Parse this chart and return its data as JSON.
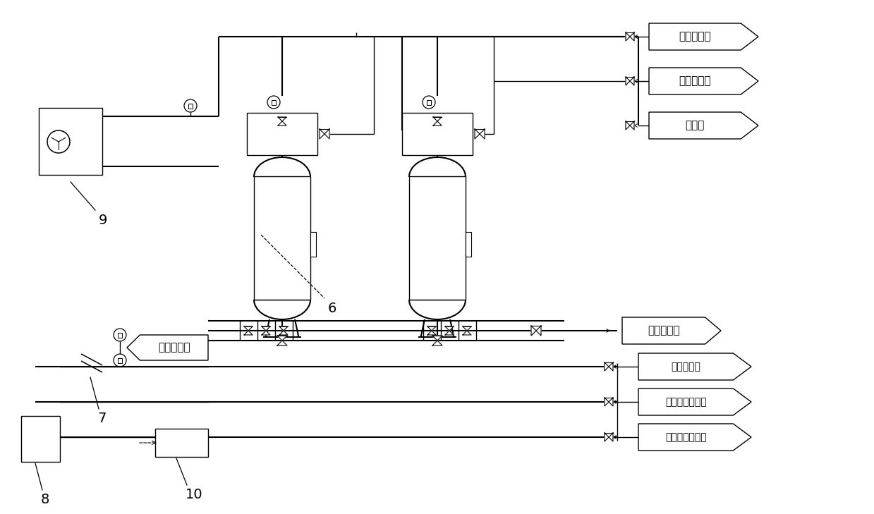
{
  "bg_color": "#ffffff",
  "line_color": "#000000",
  "lw": 1.0,
  "lw2": 1.5,
  "labels": {
    "right_top1": "碱性再生剂",
    "right_top2": "酸性再生剂",
    "right_top3": "反洗水",
    "right_mid": "合格润滑剂",
    "right_bot1": "放空润滑剂",
    "right_bot2": "放空碱性再生剂",
    "right_bot3": "放空酸性再生剂",
    "left_label": "外界自来水",
    "num9": "9",
    "num6": "6",
    "num8": "8",
    "num7": "7",
    "num10": "10"
  },
  "font_cn": 11,
  "font_num": 14,
  "fig_w": 12.39,
  "fig_h": 7.29,
  "dpi": 100
}
